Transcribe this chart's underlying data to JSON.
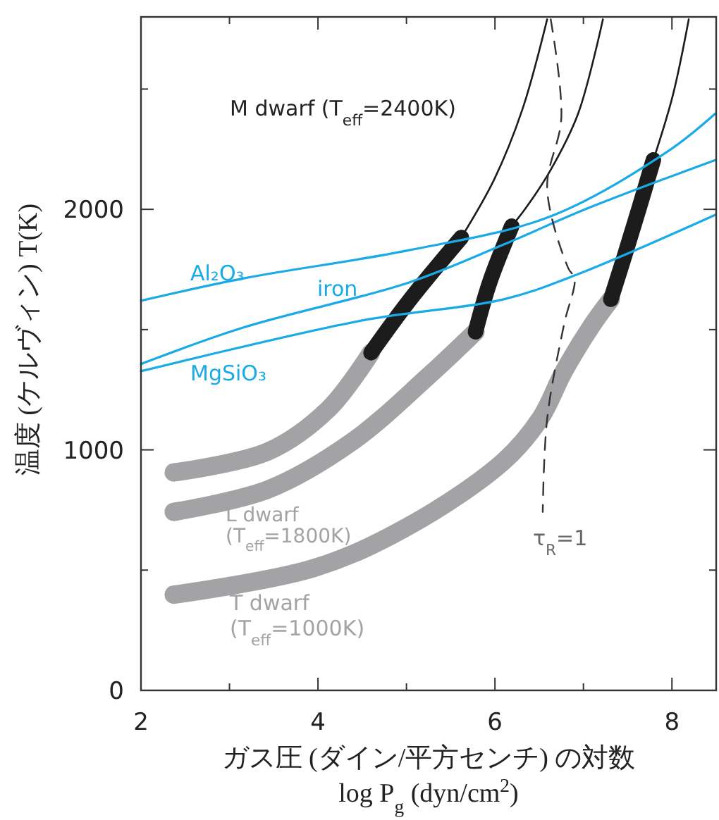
{
  "chart_data": {
    "type": "line",
    "xlabel": "ガス圧 (ダイン/平方センチ) の対数\nlog P$_{g}$ (dyn/cm$^{2}$)",
    "ylabel": "温度 (ケルヴィン)   T(K)",
    "xlim": [
      2,
      8.5
    ],
    "ylim": [
      0,
      2800
    ],
    "xticks": [
      2,
      {
        "value": 3,
        "label": null
      },
      4,
      {
        "value": 5,
        "label": null
      },
      6,
      {
        "value": 7,
        "label": null
      },
      8
    ],
    "yticks": [
      0,
      {
        "value": 500,
        "label": null
      },
      1000,
      {
        "value": 1500,
        "label": null
      },
      2000,
      {
        "value": 2500,
        "label": null
      }
    ],
    "grid": false,
    "marker": "none",
    "line_style": "solid",
    "series": [
      {
        "color": "#a3a3a5",
        "x": [
          2.37,
          3.44,
          4.12,
          4.6
        ],
        "values": [
          906,
          994,
          1170,
          1404
        ]
      },
      {
        "color": "#1c1c1c",
        "x": [
          4.6,
          5.03,
          5.62
        ],
        "values": [
          1404,
          1620,
          1883
        ]
      },
      {
        "name": "M dwarf (T$_{eff}$=2400K)",
        "color": "#1c1c1c",
        "x": [
          5.62,
          5.99,
          6.31,
          6.59
        ],
        "values": [
          1883,
          2123,
          2415,
          2790
        ]
      },
      {
        "name": "L dwarf (T$_{eff}$=1800K)",
        "color": "#a3a3a5",
        "x": [
          2.37,
          3.44,
          4.39,
          5.24,
          5.78
        ],
        "values": [
          742,
          836,
          1035,
          1304,
          1491
        ]
      },
      {
        "color": "#1c1c1c",
        "x": [
          5.78,
          5.94,
          6.19
        ],
        "values": [
          1491,
          1696,
          1930
        ]
      },
      {
        "color": "#1c1c1c",
        "x": [
          6.19,
          6.35,
          6.63,
          6.94,
          7.22
        ],
        "values": [
          1930,
          2006,
          2164,
          2398,
          2790
        ]
      },
      {
        "name": "T dwarf (T$_{eff}$=1000K)",
        "color": "#a3a3a5",
        "x": [
          2.37,
          3.96,
          5.03,
          6.1,
          6.51,
          6.78,
          7.1,
          7.31
        ],
        "values": [
          398,
          509,
          684,
          953,
          1129,
          1327,
          1520,
          1626
        ]
      },
      {
        "color": "#1c1c1c",
        "x": [
          7.31,
          7.47,
          7.63,
          7.79
        ],
        "values": [
          1626,
          1813,
          2006,
          2205
        ]
      },
      {
        "color": "#1c1c1c",
        "x": [
          7.79,
          8.01,
          8.19
        ],
        "values": [
          2205,
          2474,
          2790
        ]
      },
      {
        "name": "Al₂O₃",
        "color": "#19aae8",
        "x": [
          2.0,
          3.16,
          5.03,
          6.63,
          7.95,
          8.49
        ],
        "values": [
          1620,
          1713,
          1830,
          1971,
          2240,
          2398
        ]
      },
      {
        "name": "iron",
        "color": "#19aae8",
        "x": [
          2.0,
          3.16,
          5.03,
          6.1,
          7.06,
          8.49
        ],
        "values": [
          1357,
          1509,
          1696,
          1854,
          2006,
          2205
        ]
      },
      {
        "name": "MgSiO₃",
        "color": "#19aae8",
        "x": [
          2.0,
          4.5,
          6.1,
          6.9,
          8.49
        ],
        "values": [
          1327,
          1538,
          1626,
          1725,
          1977
        ]
      },
      {
        "name": "τ$_{R}$=1",
        "color": "#333333",
        "line_style": "dashed",
        "x": [
          6.63,
          6.75,
          6.59,
          6.83,
          6.9,
          6.78,
          6.59,
          6.54
        ],
        "values": [
          2790,
          2380,
          2088,
          1754,
          1713,
          1520,
          1129,
          742
        ]
      }
    ]
  }
}
